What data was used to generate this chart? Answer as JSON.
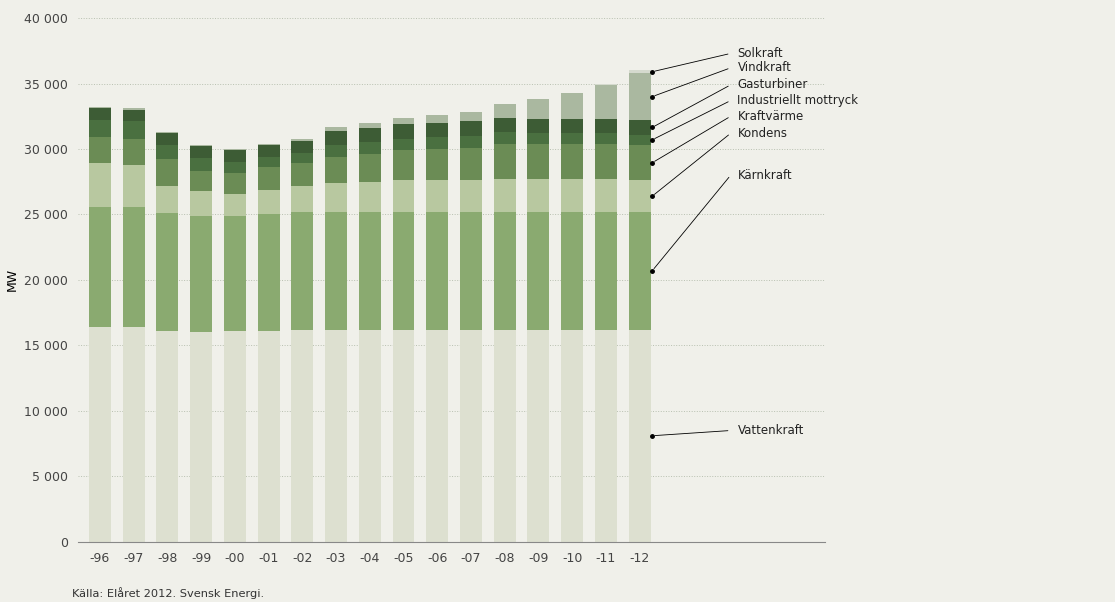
{
  "years": [
    "-96",
    "-97",
    "-98",
    "-99",
    "-00",
    "-01",
    "-02",
    "-03",
    "-04",
    "-05",
    "-06",
    "-07",
    "-08",
    "-09",
    "-10",
    "-11",
    "-12"
  ],
  "categories": [
    "Vattenkraft",
    "Kärnkraft",
    "Kondens",
    "Kraftvärme",
    "Industriellt mottryck",
    "Gasturbiner",
    "Vindkraft",
    "Solkraft"
  ],
  "color_map": {
    "Vattenkraft": "#dde0d0",
    "Kärnkraft": "#8aaa70",
    "Kondens": "#b8c8a0",
    "Kraftvärme": "#6b8c55",
    "Industriellt mottryck": "#4a7040",
    "Gasturbiner": "#3d5c35",
    "Vindkraft": "#aab8a0",
    "Solkraft": "#d5dace"
  },
  "data": {
    "Vattenkraft": [
      16400,
      16400,
      16100,
      16000,
      16100,
      16100,
      16200,
      16200,
      16200,
      16200,
      16200,
      16200,
      16200,
      16200,
      16200,
      16200,
      16200
    ],
    "Kärnkraft": [
      9200,
      9200,
      9000,
      8900,
      8800,
      8900,
      9000,
      9000,
      9000,
      9000,
      9000,
      9000,
      9000,
      9000,
      9000,
      9000,
      9000
    ],
    "Kondens": [
      3300,
      3200,
      2100,
      1900,
      1700,
      1900,
      2000,
      2200,
      2300,
      2400,
      2400,
      2400,
      2500,
      2500,
      2500,
      2500,
      2400
    ],
    "Kraftvärme": [
      2000,
      2000,
      2000,
      1500,
      1600,
      1700,
      1700,
      2000,
      2100,
      2300,
      2400,
      2500,
      2700,
      2700,
      2700,
      2700,
      2700
    ],
    "Industriellt mottryck": [
      1300,
      1300,
      1100,
      1000,
      800,
      800,
      800,
      900,
      900,
      900,
      900,
      900,
      900,
      800,
      800,
      800,
      800
    ],
    "Gasturbiner": [
      900,
      900,
      900,
      900,
      900,
      900,
      900,
      1100,
      1100,
      1100,
      1100,
      1100,
      1100,
      1100,
      1100,
      1100,
      1100
    ],
    "Vindkraft": [
      100,
      100,
      100,
      100,
      100,
      100,
      200,
      300,
      400,
      500,
      600,
      700,
      1000,
      1500,
      2000,
      2600,
      3600
    ],
    "Solkraft": [
      0,
      0,
      0,
      0,
      0,
      0,
      0,
      0,
      0,
      0,
      0,
      0,
      0,
      0,
      0,
      50,
      200
    ]
  },
  "ylabel": "MW",
  "ylim": [
    0,
    40000
  ],
  "yticks": [
    0,
    5000,
    10000,
    15000,
    20000,
    25000,
    30000,
    35000,
    40000
  ],
  "ytick_labels": [
    "0",
    "5 000",
    "10 000",
    "15 000",
    "20 000",
    "25 000",
    "30 000",
    "35 000",
    "40 000"
  ],
  "source_text": "Källa: Elåret 2012. Svensk Energi.",
  "background_color": "#f0f0ea",
  "legend_order": [
    "Solkraft",
    "Vindkraft",
    "Gasturbiner",
    "Industriellt mottryck",
    "Kraftvärme",
    "Kondens",
    "Kärnkraft",
    "Vattenkraft"
  ],
  "legend_y_text": [
    37300,
    36200,
    34900,
    33700,
    32500,
    31200,
    28000,
    8500
  ]
}
